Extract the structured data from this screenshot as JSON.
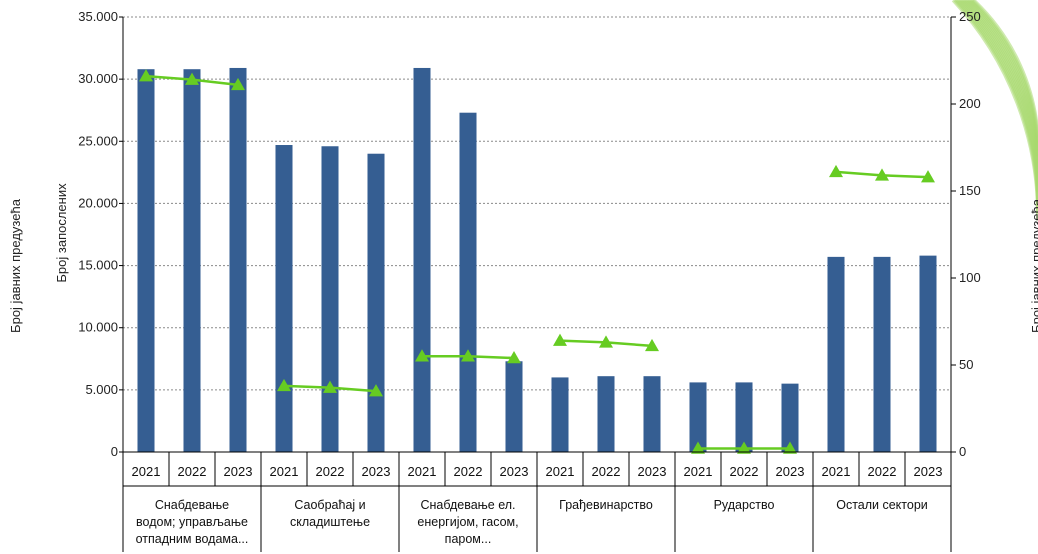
{
  "chart_data": {
    "type": "bar",
    "title": "",
    "groups": [
      {
        "lines": [
          "Снабдевање",
          "водом; управљање",
          "отпадним водама..."
        ]
      },
      {
        "lines": [
          "Саобраћај и",
          "складиштење"
        ]
      },
      {
        "lines": [
          "Снабдевање ел.",
          "енергијом, гасом,",
          "паром..."
        ]
      },
      {
        "lines": [
          "Грађевинарство"
        ]
      },
      {
        "lines": [
          "Рударство"
        ]
      },
      {
        "lines": [
          "Остали сектори"
        ]
      }
    ],
    "years": [
      "2021",
      "2022",
      "2023"
    ],
    "series": [
      {
        "type": "bar",
        "axis": "left",
        "color": "#355E92",
        "values": [
          30800,
          30800,
          30900,
          24700,
          24600,
          24000,
          30900,
          27300,
          7300,
          6000,
          6100,
          6100,
          5600,
          5600,
          5500,
          15700,
          15700,
          15800
        ]
      },
      {
        "type": "line",
        "axis": "right",
        "color": "#66CC22",
        "marker": "triangle",
        "values": [
          216,
          214,
          211,
          38,
          37,
          35,
          55,
          55,
          54,
          64,
          63,
          61,
          2,
          2,
          2,
          161,
          159,
          158
        ]
      }
    ],
    "y_left": {
      "label": "Број запослених",
      "range": [
        0,
        35000
      ],
      "ticks": [
        "0",
        "5.000",
        "10.000",
        "15.000",
        "20.000",
        "25.000",
        "30.000",
        "35.000"
      ]
    },
    "y_right": {
      "label": "Број јавних предузећа",
      "range": [
        0,
        250
      ],
      "ticks": [
        "0",
        "50",
        "100",
        "150",
        "200",
        "250"
      ]
    },
    "outer_left_label": "Број јавних предузећа",
    "grid": true,
    "legend": "none"
  },
  "colors": {
    "decor_stripes": "#A8D86E"
  }
}
